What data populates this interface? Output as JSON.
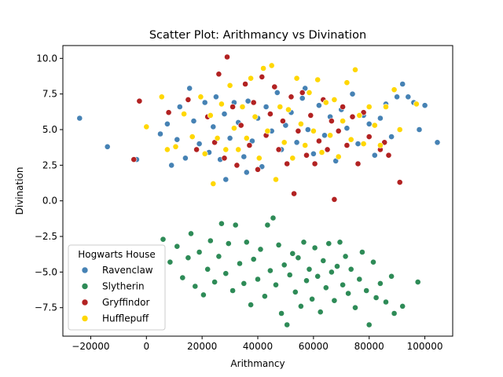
{
  "chart_data": {
    "type": "scatter",
    "title": "Scatter Plot: Arithmancy vs Divination",
    "xlabel": "Arithmancy",
    "ylabel": "Divination",
    "xlim": [
      -30000,
      110000
    ],
    "ylim": [
      -9.5,
      10.9
    ],
    "xticks": [
      -20000,
      0,
      20000,
      40000,
      60000,
      80000,
      100000
    ],
    "xtick_labels": [
      "−20000",
      "0",
      "20000",
      "40000",
      "60000",
      "80000",
      "100000"
    ],
    "yticks": [
      -7.5,
      -5.0,
      -2.5,
      0.0,
      2.5,
      5.0,
      7.5,
      10.0
    ],
    "ytick_labels": [
      "−7.5",
      "−5.0",
      "−2.5",
      "0.0",
      "2.5",
      "5.0",
      "7.5",
      "10.0"
    ],
    "grid": false,
    "legend": {
      "title": "Hogwarts House",
      "placement": "lower-left"
    },
    "series": [
      {
        "name": "Ravenclaw",
        "color": "#4682B4",
        "points": [
          [
            -24000,
            5.8
          ],
          [
            -14000,
            3.8
          ],
          [
            -3500,
            2.9
          ],
          [
            5000,
            4.7
          ],
          [
            7500,
            5.4
          ],
          [
            9000,
            2.5
          ],
          [
            11000,
            4.3
          ],
          [
            12000,
            6.6
          ],
          [
            14000,
            3.0
          ],
          [
            15500,
            7.9
          ],
          [
            17000,
            5.6
          ],
          [
            19000,
            4.0
          ],
          [
            21000,
            6.9
          ],
          [
            22500,
            3.4
          ],
          [
            24000,
            5.2
          ],
          [
            25000,
            7.3
          ],
          [
            26500,
            2.9
          ],
          [
            28000,
            6.1
          ],
          [
            30000,
            4.4
          ],
          [
            31500,
            6.9
          ],
          [
            33000,
            5.5
          ],
          [
            35000,
            3.1
          ],
          [
            36500,
            7.0
          ],
          [
            38000,
            4.2
          ],
          [
            40000,
            5.8
          ],
          [
            41500,
            2.4
          ],
          [
            43000,
            6.6
          ],
          [
            45000,
            4.9
          ],
          [
            47000,
            7.6
          ],
          [
            48500,
            3.6
          ],
          [
            50000,
            5.3
          ],
          [
            52000,
            6.2
          ],
          [
            54000,
            4.1
          ],
          [
            56000,
            7.2
          ],
          [
            58000,
            5.0
          ],
          [
            60000,
            3.3
          ],
          [
            62000,
            6.7
          ],
          [
            64000,
            4.6
          ],
          [
            66000,
            5.9
          ],
          [
            68000,
            2.8
          ],
          [
            70000,
            6.4
          ],
          [
            72000,
            5.1
          ],
          [
            74000,
            7.5
          ],
          [
            76000,
            4.0
          ],
          [
            78000,
            6.0
          ],
          [
            80000,
            5.4
          ],
          [
            82000,
            3.2
          ],
          [
            84000,
            5.8
          ],
          [
            86000,
            6.8
          ],
          [
            88000,
            4.5
          ],
          [
            90000,
            7.3
          ],
          [
            92000,
            8.2
          ],
          [
            94000,
            7.3
          ],
          [
            96000,
            6.9
          ],
          [
            98000,
            5.0
          ],
          [
            100000,
            6.7
          ],
          [
            104500,
            4.1
          ],
          [
            36000,
            2.0
          ],
          [
            28500,
            1.5
          ],
          [
            57000,
            7.9
          ]
        ]
      },
      {
        "name": "Slytherin",
        "color": "#2E8B57",
        "points": [
          [
            6000,
            -2.7
          ],
          [
            8500,
            -4.3
          ],
          [
            11000,
            -3.2
          ],
          [
            13000,
            -5.4
          ],
          [
            15000,
            -4.0
          ],
          [
            16000,
            -2.3
          ],
          [
            17500,
            -6.0
          ],
          [
            19000,
            -3.6
          ],
          [
            20500,
            -6.6
          ],
          [
            22000,
            -4.8
          ],
          [
            23000,
            -2.8
          ],
          [
            24500,
            -5.7
          ],
          [
            26000,
            -3.9
          ],
          [
            27000,
            -1.6
          ],
          [
            28500,
            -5.1
          ],
          [
            29500,
            -3.0
          ],
          [
            31000,
            -6.3
          ],
          [
            32000,
            -1.7
          ],
          [
            33500,
            -4.4
          ],
          [
            35000,
            -5.8
          ],
          [
            36000,
            -2.9
          ],
          [
            37500,
            -7.3
          ],
          [
            38500,
            -4.1
          ],
          [
            40000,
            -5.5
          ],
          [
            41000,
            -3.4
          ],
          [
            42500,
            -6.7
          ],
          [
            43500,
            -1.7
          ],
          [
            44500,
            -4.9
          ],
          [
            45500,
            -1.2
          ],
          [
            46500,
            -5.9
          ],
          [
            47500,
            -3.1
          ],
          [
            48500,
            -7.9
          ],
          [
            49500,
            -4.5
          ],
          [
            50500,
            -8.7
          ],
          [
            51500,
            -5.2
          ],
          [
            52500,
            -3.7
          ],
          [
            53500,
            -6.4
          ],
          [
            54500,
            -4.0
          ],
          [
            55500,
            -7.4
          ],
          [
            56500,
            -2.9
          ],
          [
            57500,
            -5.6
          ],
          [
            58500,
            -4.8
          ],
          [
            59500,
            -6.9
          ],
          [
            60500,
            -3.3
          ],
          [
            61500,
            -5.3
          ],
          [
            62500,
            -7.8
          ],
          [
            63500,
            -4.2
          ],
          [
            64500,
            -6.1
          ],
          [
            65500,
            -3.0
          ],
          [
            66500,
            -5.0
          ],
          [
            67500,
            -7.0
          ],
          [
            68500,
            -4.6
          ],
          [
            69500,
            -2.9
          ],
          [
            70500,
            -5.9
          ],
          [
            71500,
            -3.9
          ],
          [
            72500,
            -6.5
          ],
          [
            73500,
            -4.8
          ],
          [
            75000,
            -7.5
          ],
          [
            76500,
            -5.5
          ],
          [
            77500,
            -3.6
          ],
          [
            79000,
            -6.3
          ],
          [
            80000,
            -8.7
          ],
          [
            81500,
            -4.3
          ],
          [
            82500,
            -6.8
          ],
          [
            84000,
            -5.8
          ],
          [
            86000,
            -7.1
          ],
          [
            88000,
            -5.3
          ],
          [
            89000,
            -7.9
          ],
          [
            92000,
            -7.4
          ],
          [
            97500,
            -5.7
          ]
        ]
      },
      {
        "name": "Gryffindor",
        "color": "#B22222",
        "points": [
          [
            -4500,
            2.9
          ],
          [
            -2500,
            7.0
          ],
          [
            8000,
            6.2
          ],
          [
            15000,
            7.1
          ],
          [
            18000,
            3.6
          ],
          [
            22000,
            5.9
          ],
          [
            24500,
            4.1
          ],
          [
            26000,
            8.9
          ],
          [
            28000,
            3.0
          ],
          [
            29000,
            10.1
          ],
          [
            31000,
            6.6
          ],
          [
            32500,
            2.5
          ],
          [
            34000,
            5.3
          ],
          [
            35500,
            8.2
          ],
          [
            37000,
            3.9
          ],
          [
            38500,
            6.9
          ],
          [
            40000,
            2.2
          ],
          [
            41500,
            8.7
          ],
          [
            43000,
            4.6
          ],
          [
            44500,
            6.1
          ],
          [
            46000,
            8.0
          ],
          [
            47500,
            3.6
          ],
          [
            49000,
            5.6
          ],
          [
            50500,
            2.6
          ],
          [
            52000,
            7.3
          ],
          [
            53000,
            0.5
          ],
          [
            54500,
            4.9
          ],
          [
            56000,
            7.6
          ],
          [
            57500,
            3.2
          ],
          [
            59000,
            6.0
          ],
          [
            60500,
            2.6
          ],
          [
            62000,
            4.2
          ],
          [
            63500,
            7.1
          ],
          [
            65000,
            3.6
          ],
          [
            66500,
            5.6
          ],
          [
            67500,
            0.1
          ],
          [
            69000,
            4.9
          ],
          [
            70500,
            6.6
          ],
          [
            72000,
            3.9
          ],
          [
            74000,
            5.9
          ],
          [
            76000,
            2.6
          ],
          [
            78000,
            6.2
          ],
          [
            80000,
            4.5
          ],
          [
            82000,
            5.3
          ],
          [
            84000,
            3.6
          ],
          [
            85500,
            4.1
          ],
          [
            87000,
            3.2
          ],
          [
            91000,
            1.3
          ]
        ]
      },
      {
        "name": "Hufflepuff",
        "color": "#FFD700",
        "points": [
          [
            0,
            5.2
          ],
          [
            5500,
            7.3
          ],
          [
            7500,
            3.6
          ],
          [
            10500,
            3.8
          ],
          [
            13500,
            6.1
          ],
          [
            16500,
            4.5
          ],
          [
            19500,
            7.3
          ],
          [
            21000,
            3.3
          ],
          [
            23000,
            6.0
          ],
          [
            24000,
            1.2
          ],
          [
            25500,
            4.4
          ],
          [
            27000,
            6.8
          ],
          [
            28500,
            3.6
          ],
          [
            30000,
            8.1
          ],
          [
            31500,
            5.1
          ],
          [
            33000,
            3.6
          ],
          [
            34500,
            6.6
          ],
          [
            36000,
            4.4
          ],
          [
            37500,
            8.6
          ],
          [
            39000,
            5.9
          ],
          [
            40500,
            3.0
          ],
          [
            42000,
            9.3
          ],
          [
            43500,
            4.9
          ],
          [
            45000,
            9.5
          ],
          [
            46500,
            1.5
          ],
          [
            48000,
            6.6
          ],
          [
            49500,
            4.1
          ],
          [
            51000,
            6.4
          ],
          [
            52500,
            3.0
          ],
          [
            54000,
            8.6
          ],
          [
            55500,
            5.4
          ],
          [
            57000,
            3.9
          ],
          [
            58500,
            7.6
          ],
          [
            60000,
            4.9
          ],
          [
            61500,
            8.5
          ],
          [
            63000,
            3.4
          ],
          [
            64500,
            6.9
          ],
          [
            66000,
            4.6
          ],
          [
            67500,
            7.1
          ],
          [
            69000,
            3.1
          ],
          [
            70500,
            5.6
          ],
          [
            72000,
            8.3
          ],
          [
            73500,
            4.3
          ],
          [
            75000,
            9.2
          ],
          [
            76500,
            6.0
          ],
          [
            78000,
            4.0
          ],
          [
            80000,
            6.6
          ],
          [
            82000,
            5.3
          ],
          [
            84000,
            3.9
          ],
          [
            86000,
            6.6
          ],
          [
            89000,
            7.8
          ],
          [
            91000,
            5.0
          ],
          [
            97000,
            6.8
          ]
        ]
      }
    ]
  }
}
